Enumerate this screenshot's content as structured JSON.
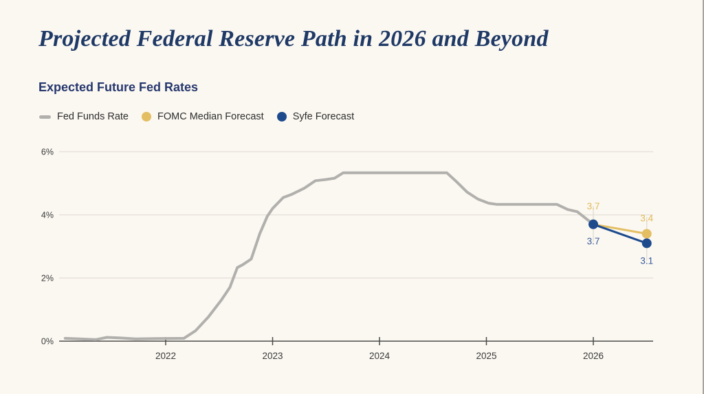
{
  "window": {
    "background": "#fbf8f1",
    "right_edge_color": "#a5a3a0"
  },
  "header": {
    "title": "Projected Federal Reserve Path in 2026 and Beyond",
    "title_color": "#1f3966"
  },
  "chart_data": {
    "type": "line",
    "title": "Expected Future Fed Rates",
    "legend_position": "top-left",
    "grid": true,
    "legend": [
      {
        "label": "Fed Funds Rate",
        "marker": "dash",
        "color": "#b2b0ad"
      },
      {
        "label": "FOMC Median Forecast",
        "marker": "circle",
        "color": "#e3be63"
      },
      {
        "label": "Syfe Forecast",
        "marker": "circle",
        "color": "#1d4a8d"
      }
    ],
    "x_axis": {
      "ticks": [
        2022,
        2023,
        2024,
        2025,
        2026
      ],
      "range": [
        2021.0,
        2026.56
      ]
    },
    "y_axis": {
      "ticks": [
        0,
        2,
        4,
        6
      ],
      "suffix": "%",
      "range": [
        0,
        6.2
      ]
    },
    "series": [
      {
        "name": "Fed Funds Rate",
        "color": "#b2b0ad",
        "width": 4,
        "points": [
          [
            2021.06,
            0.09
          ],
          [
            2021.2,
            0.07
          ],
          [
            2021.35,
            0.05
          ],
          [
            2021.45,
            0.12
          ],
          [
            2021.58,
            0.1
          ],
          [
            2021.72,
            0.07
          ],
          [
            2021.9,
            0.08
          ],
          [
            2022.17,
            0.09
          ],
          [
            2022.28,
            0.33
          ],
          [
            2022.4,
            0.77
          ],
          [
            2022.52,
            1.3
          ],
          [
            2022.6,
            1.7
          ],
          [
            2022.67,
            2.33
          ],
          [
            2022.72,
            2.42
          ],
          [
            2022.8,
            2.6
          ],
          [
            2022.88,
            3.4
          ],
          [
            2022.95,
            3.95
          ],
          [
            2023.0,
            4.2
          ],
          [
            2023.1,
            4.55
          ],
          [
            2023.18,
            4.65
          ],
          [
            2023.3,
            4.85
          ],
          [
            2023.4,
            5.08
          ],
          [
            2023.5,
            5.12
          ],
          [
            2023.58,
            5.16
          ],
          [
            2023.66,
            5.33
          ],
          [
            2024.63,
            5.33
          ],
          [
            2024.72,
            5.05
          ],
          [
            2024.82,
            4.72
          ],
          [
            2024.92,
            4.5
          ],
          [
            2025.02,
            4.37
          ],
          [
            2025.1,
            4.33
          ],
          [
            2025.66,
            4.33
          ],
          [
            2025.76,
            4.17
          ],
          [
            2025.85,
            4.1
          ],
          [
            2026.0,
            3.7
          ]
        ],
        "dots": [],
        "labels": []
      },
      {
        "name": "FOMC Median Forecast",
        "color": "#e3be63",
        "width": 3,
        "points": [
          [
            2026.0,
            3.7
          ],
          [
            2026.5,
            3.4
          ]
        ],
        "dots": [
          [
            2026.5,
            3.4
          ]
        ],
        "label_color": "#e0ba58",
        "labels": [
          {
            "x": 2026.0,
            "v": 3.7,
            "text": "3.7",
            "dy": -22
          },
          {
            "x": 2026.5,
            "v": 3.4,
            "text": "3.4",
            "dy": -18
          }
        ]
      },
      {
        "name": "Syfe Forecast",
        "color": "#1d4a8d",
        "width": 3,
        "points": [
          [
            2026.0,
            3.7
          ],
          [
            2026.5,
            3.1
          ]
        ],
        "dots": [
          [
            2026.0,
            3.7
          ],
          [
            2026.5,
            3.1
          ]
        ],
        "label_color": "#35589b",
        "labels": [
          {
            "x": 2026.0,
            "v": 3.7,
            "text": "3.7",
            "dy": 29
          },
          {
            "x": 2026.5,
            "v": 3.1,
            "text": "3.1",
            "dy": 30
          }
        ]
      }
    ],
    "annotations": {
      "leader_lines": [
        {
          "x": 2026.0,
          "v_top": 4.28,
          "v_bottom": 3.15
        },
        {
          "x": 2026.5,
          "v_top": 3.93,
          "v_bottom": 2.54
        }
      ]
    }
  }
}
